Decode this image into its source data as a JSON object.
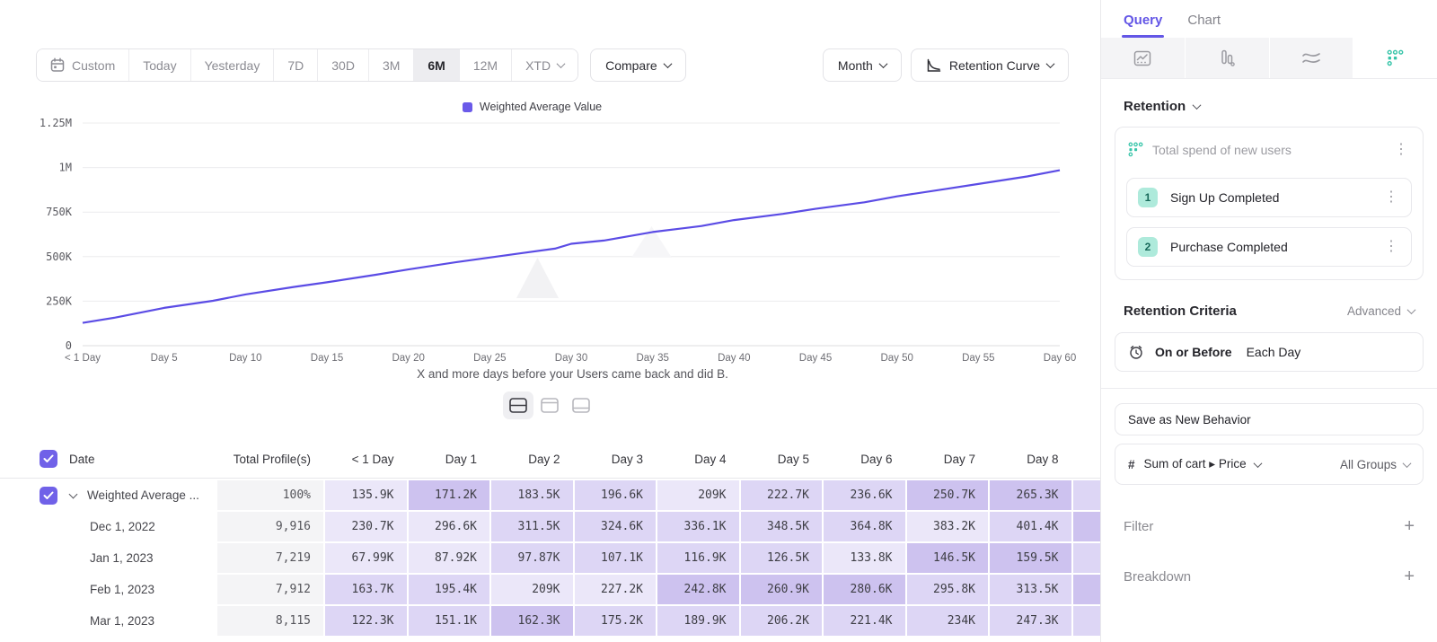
{
  "toolbar": {
    "date_ranges": [
      "Custom",
      "Today",
      "Yesterday",
      "7D",
      "30D",
      "3M",
      "6M",
      "12M",
      "XTD"
    ],
    "selected_range": "6M",
    "xtd_has_chevron": true,
    "compare_label": "Compare",
    "granularity_label": "Month",
    "chart_type_label": "Retention Curve"
  },
  "chart_data": {
    "type": "line",
    "series": [
      {
        "name": "Weighted Average Value",
        "color": "#5b4ce5",
        "points": [
          [
            0,
            128
          ],
          [
            2,
            158
          ],
          [
            5,
            212
          ],
          [
            8,
            252
          ],
          [
            10,
            288
          ],
          [
            13,
            330
          ],
          [
            15,
            356
          ],
          [
            18,
            398
          ],
          [
            20,
            428
          ],
          [
            23,
            470
          ],
          [
            25,
            495
          ],
          [
            27,
            520
          ],
          [
            29,
            545
          ],
          [
            30,
            572
          ],
          [
            32,
            590
          ],
          [
            35,
            638
          ],
          [
            38,
            672
          ],
          [
            40,
            705
          ],
          [
            43,
            740
          ],
          [
            45,
            768
          ],
          [
            48,
            805
          ],
          [
            50,
            838
          ],
          [
            53,
            880
          ],
          [
            55,
            908
          ],
          [
            58,
            950
          ],
          [
            60,
            985
          ]
        ]
      }
    ],
    "x_ticks": [
      {
        "day": 0,
        "label": "< 1 Day"
      },
      {
        "day": 5,
        "label": "Day 5"
      },
      {
        "day": 10,
        "label": "Day 10"
      },
      {
        "day": 15,
        "label": "Day 15"
      },
      {
        "day": 20,
        "label": "Day 20"
      },
      {
        "day": 25,
        "label": "Day 25"
      },
      {
        "day": 30,
        "label": "Day 30"
      },
      {
        "day": 35,
        "label": "Day 35"
      },
      {
        "day": 40,
        "label": "Day 40"
      },
      {
        "day": 45,
        "label": "Day 45"
      },
      {
        "day": 50,
        "label": "Day 50"
      },
      {
        "day": 55,
        "label": "Day 55"
      },
      {
        "day": 60,
        "label": "Day 60"
      }
    ],
    "y_ticks": [
      {
        "value_k": 0,
        "label": "0"
      },
      {
        "value_k": 250,
        "label": "250K"
      },
      {
        "value_k": 500,
        "label": "500K"
      },
      {
        "value_k": 750,
        "label": "750K"
      },
      {
        "value_k": 1000,
        "label": "1M"
      },
      {
        "value_k": 1250,
        "label": "1.25M"
      }
    ],
    "y_max_k": 1250,
    "x_max_day": 60,
    "grid": true,
    "legend_position": "top-center",
    "caption": "X and more days before your Users came back and did B."
  },
  "table": {
    "columns": [
      "Date",
      "Total Profile(s)",
      "< 1 Day",
      "Day 1",
      "Day 2",
      "Day 3",
      "Day 4",
      "Day 5",
      "Day 6",
      "Day 7",
      "Day 8"
    ],
    "rows": [
      {
        "label": "Weighted Average ...",
        "expandable": true,
        "checked": true,
        "total": "100%",
        "values": [
          "135.9K",
          "171.2K",
          "183.5K",
          "196.6K",
          "209K",
          "222.7K",
          "236.6K",
          "250.7K",
          "265.3K"
        ],
        "heat": [
          1,
          3,
          2,
          2,
          1,
          2,
          2,
          3,
          3
        ],
        "sliver": 2
      },
      {
        "label": "Dec 1, 2022",
        "expandable": false,
        "checked": false,
        "total": "9,916",
        "values": [
          "230.7K",
          "296.6K",
          "311.5K",
          "324.6K",
          "336.1K",
          "348.5K",
          "364.8K",
          "383.2K",
          "401.4K"
        ],
        "heat": [
          1,
          1,
          2,
          2,
          2,
          2,
          2,
          1,
          2
        ],
        "sliver": 3
      },
      {
        "label": "Jan 1, 2023",
        "expandable": false,
        "checked": false,
        "total": "7,219",
        "values": [
          "67.99K",
          "87.92K",
          "97.87K",
          "107.1K",
          "116.9K",
          "126.5K",
          "133.8K",
          "146.5K",
          "159.5K"
        ],
        "heat": [
          1,
          1,
          2,
          2,
          2,
          2,
          1,
          3,
          3
        ],
        "sliver": 2
      },
      {
        "label": "Feb 1, 2023",
        "expandable": false,
        "checked": false,
        "total": "7,912",
        "values": [
          "163.7K",
          "195.4K",
          "209K",
          "227.2K",
          "242.8K",
          "260.9K",
          "280.6K",
          "295.8K",
          "313.5K"
        ],
        "heat": [
          2,
          2,
          1,
          1,
          3,
          3,
          3,
          2,
          2
        ],
        "sliver": 3
      },
      {
        "label": "Mar 1, 2023",
        "expandable": false,
        "checked": false,
        "total": "8,115",
        "values": [
          "122.3K",
          "151.1K",
          "162.3K",
          "175.2K",
          "189.9K",
          "206.2K",
          "221.4K",
          "234K",
          "247.3K"
        ],
        "heat": [
          2,
          2,
          3,
          2,
          2,
          2,
          2,
          2,
          2
        ],
        "sliver": 2
      }
    ]
  },
  "sidebar": {
    "tabs": [
      "Query",
      "Chart"
    ],
    "active_tab": "Query",
    "chart_kind_icons": [
      "line-chart",
      "bar-chart",
      "flows",
      "retention"
    ],
    "active_chart_kind": "retention",
    "section_label": "Retention",
    "behavior_card": {
      "title": "Total spend of new users",
      "steps": [
        {
          "num": "1",
          "label": "Sign Up Completed"
        },
        {
          "num": "2",
          "label": "Purchase Completed"
        }
      ]
    },
    "criteria": {
      "title": "Retention Criteria",
      "mode": "Advanced",
      "condition_primary": "On or Before",
      "condition_secondary": "Each Day"
    },
    "save_label": "Save as New Behavior",
    "measure": {
      "prefix": "#",
      "label": "Sum of cart ▸ Price",
      "groups": "All Groups"
    },
    "filter_label": "Filter",
    "breakdown_label": "Breakdown"
  },
  "colors": {
    "accent_purple": "#5b4ce5",
    "checkbox_purple": "#7061e8",
    "tab_purple": "#6356e6",
    "teal": "#35c4a8",
    "badge_bg": "#aeeadb",
    "badge_text": "#17695a",
    "heat_1": "#ebe7f9",
    "heat_2": "#ddd6f5",
    "heat_3": "#cdc2ef",
    "grid_line": "#ececee"
  }
}
